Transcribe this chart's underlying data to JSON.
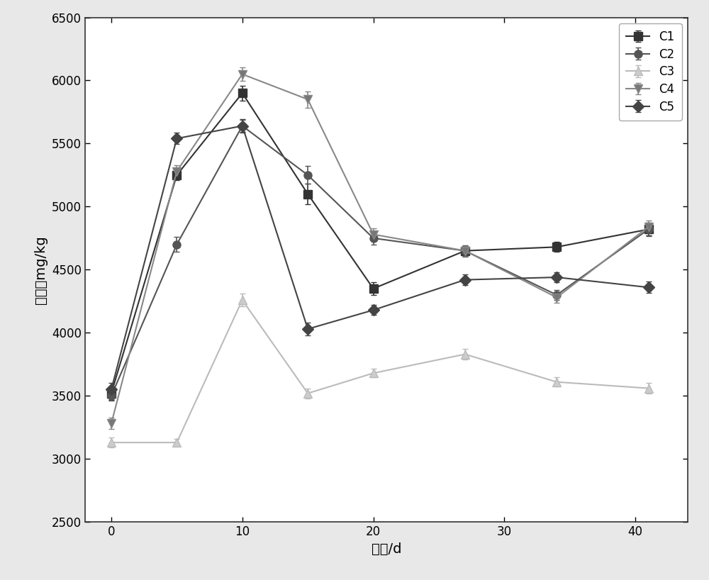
{
  "x": [
    0,
    5,
    10,
    15,
    20,
    27,
    34,
    41
  ],
  "C1": [
    3520,
    5250,
    5900,
    5100,
    4350,
    4650,
    4680,
    4820
  ],
  "C2": [
    3500,
    4700,
    5640,
    5250,
    4750,
    4650,
    4300,
    4820
  ],
  "C3": [
    3130,
    3130,
    4260,
    3520,
    3680,
    3830,
    3610,
    3560
  ],
  "C4": [
    3280,
    5280,
    6050,
    5850,
    4780,
    4650,
    4280,
    4840
  ],
  "C5": [
    3550,
    5540,
    5640,
    4030,
    4180,
    4420,
    4440,
    4360
  ],
  "C1_err": [
    50,
    40,
    60,
    80,
    50,
    40,
    40,
    50
  ],
  "C2_err": [
    40,
    60,
    50,
    70,
    50,
    45,
    40,
    55
  ],
  "C3_err": [
    40,
    30,
    50,
    40,
    35,
    40,
    35,
    40
  ],
  "C4_err": [
    45,
    50,
    55,
    65,
    50,
    40,
    40,
    50
  ],
  "C5_err": [
    50,
    45,
    55,
    50,
    40,
    40,
    40,
    45
  ],
  "colors": {
    "C1": "#333333",
    "C2": "#555555",
    "C3": "#bbbbbb",
    "C4": "#888888",
    "C5": "#444444"
  },
  "mfc": {
    "C1": "#333333",
    "C2": "#555555",
    "C3": "#cccccc",
    "C4": "#777777",
    "C5": "#444444"
  },
  "markers": {
    "C1": "s",
    "C2": "o",
    "C3": "^",
    "C4": "v",
    "C5": "D"
  },
  "series": [
    "C1",
    "C2",
    "C3",
    "C4",
    "C5"
  ],
  "ylabel": "碱解氭mg/kg",
  "xlabel": "时间/d",
  "ylim": [
    2500,
    6500
  ],
  "xlim": [
    -2,
    44
  ],
  "xticks": [
    0,
    10,
    20,
    30,
    40
  ],
  "yticks": [
    2500,
    3000,
    3500,
    4000,
    4500,
    5000,
    5500,
    6000,
    6500
  ],
  "figure_bg": "#e8e8e8",
  "plot_bg": "#ffffff",
  "markersize": 8,
  "linewidth": 1.5,
  "capsize": 3,
  "elinewidth": 1.2,
  "tick_fontsize": 12,
  "label_fontsize": 14,
  "legend_fontsize": 12
}
